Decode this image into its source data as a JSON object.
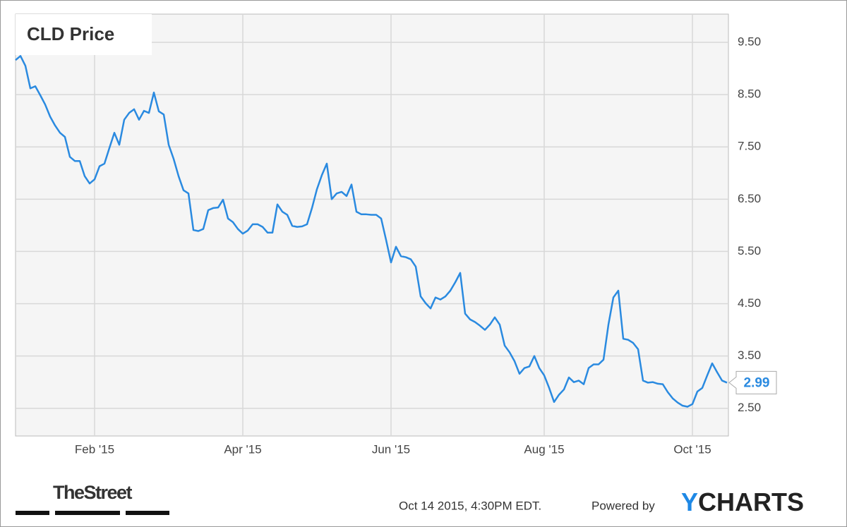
{
  "chart_data": {
    "type": "line",
    "title": "CLD Price",
    "color": "#2a8ae0",
    "grid": true,
    "ylim": [
      1.97,
      10.04
    ],
    "yticks": [
      {
        "value": 2.5,
        "label": "2.50"
      },
      {
        "value": 3.5,
        "label": "3.50"
      },
      {
        "value": 4.5,
        "label": "4.50"
      },
      {
        "value": 5.5,
        "label": "5.50"
      },
      {
        "value": 6.5,
        "label": "6.50"
      },
      {
        "value": 7.5,
        "label": "7.50"
      },
      {
        "value": 8.5,
        "label": "8.50"
      },
      {
        "value": 9.5,
        "label": "9.50"
      }
    ],
    "categories": [
      null,
      null,
      null,
      null,
      null,
      null,
      null,
      null,
      null,
      null,
      null,
      null,
      null,
      null,
      null,
      null,
      "Feb '15",
      null,
      null,
      null,
      null,
      null,
      null,
      null,
      null,
      null,
      null,
      null,
      null,
      null,
      null,
      null,
      null,
      null,
      null,
      null,
      null,
      null,
      null,
      null,
      null,
      null,
      null,
      null,
      null,
      null,
      "Apr '15",
      null,
      null,
      null,
      null,
      null,
      null,
      null,
      null,
      null,
      null,
      null,
      null,
      null,
      null,
      null,
      null,
      null,
      null,
      null,
      null,
      null,
      null,
      null,
      null,
      null,
      null,
      null,
      null,
      null,
      "Jun '15",
      null,
      null,
      null,
      null,
      null,
      null,
      null,
      null,
      null,
      null,
      null,
      null,
      null,
      null,
      null,
      null,
      null,
      null,
      null,
      null,
      null,
      null,
      null,
      null,
      null,
      null,
      null,
      null,
      null,
      null,
      "Aug '15",
      null,
      null,
      null,
      null,
      null,
      null,
      null,
      null,
      null,
      null,
      null,
      null,
      null,
      null,
      null,
      null,
      null,
      null,
      null,
      null,
      null,
      null,
      null,
      null,
      null,
      null,
      null,
      null,
      null,
      "Oct '15",
      null,
      null,
      null,
      null,
      null,
      null,
      null
    ],
    "values": [
      9.16,
      9.24,
      9.05,
      8.62,
      8.66,
      8.49,
      8.31,
      8.08,
      7.91,
      7.77,
      7.69,
      7.31,
      7.23,
      7.23,
      6.94,
      6.8,
      6.88,
      7.13,
      7.18,
      7.48,
      7.77,
      7.54,
      8.02,
      8.15,
      8.22,
      8.02,
      8.19,
      8.15,
      8.54,
      8.18,
      8.12,
      7.54,
      7.27,
      6.94,
      6.67,
      6.61,
      5.91,
      5.89,
      5.93,
      6.29,
      6.33,
      6.34,
      6.49,
      6.13,
      6.06,
      5.93,
      5.84,
      5.9,
      6.02,
      6.02,
      5.97,
      5.86,
      5.86,
      6.4,
      6.26,
      6.2,
      5.99,
      5.97,
      5.98,
      6.02,
      6.33,
      6.69,
      6.96,
      7.18,
      6.5,
      6.61,
      6.64,
      6.56,
      6.78,
      6.26,
      6.21,
      6.21,
      6.2,
      6.2,
      6.13,
      5.72,
      5.29,
      5.59,
      5.41,
      5.39,
      5.35,
      5.21,
      4.64,
      4.51,
      4.41,
      4.62,
      4.58,
      4.64,
      4.75,
      4.91,
      5.09,
      4.31,
      4.2,
      4.15,
      4.08,
      4.0,
      4.1,
      4.24,
      4.1,
      3.7,
      3.57,
      3.4,
      3.16,
      3.27,
      3.3,
      3.5,
      3.27,
      3.13,
      2.89,
      2.62,
      2.76,
      2.86,
      3.09,
      3.0,
      3.03,
      2.96,
      3.27,
      3.34,
      3.34,
      3.43,
      4.1,
      4.62,
      4.75,
      3.83,
      3.81,
      3.75,
      3.63,
      3.03,
      2.99,
      3.0,
      2.97,
      2.96,
      2.81,
      2.69,
      2.61,
      2.55,
      2.53,
      2.58,
      2.82,
      2.89,
      3.13,
      3.36,
      3.19,
      3.03,
      2.99
    ],
    "source_logo": "TheStreet",
    "timestamp": "Oct 14 2015, 4:30PM EDT.",
    "powered_by": "Powered by",
    "brand_y": "Y",
    "brand_rest": "CHARTS"
  }
}
